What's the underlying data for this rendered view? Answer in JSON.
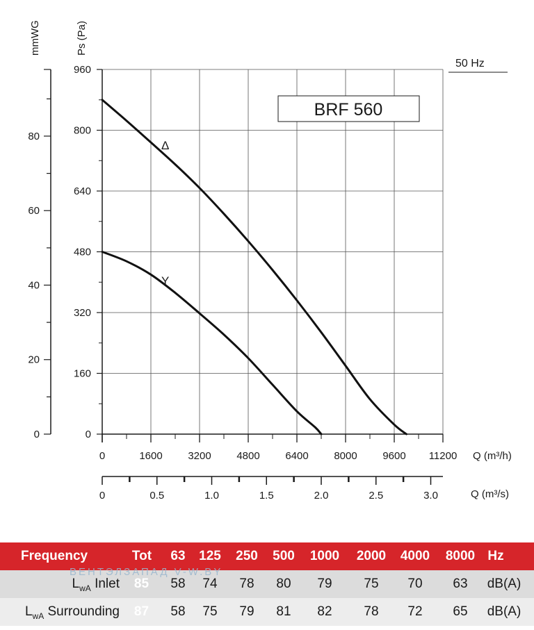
{
  "chart_data": {
    "type": "line",
    "model_label": "BRF 560",
    "frequency_label": "50 Hz",
    "y_label": "Ps (Pa)",
    "y2_label": "mmWG",
    "x_label": "Q (m³/h)",
    "x2_label": "Q (m³/s)",
    "xlim": [
      0,
      11200
    ],
    "ylim": [
      0,
      960
    ],
    "x_ticks": [
      "0",
      "1600",
      "3200",
      "4800",
      "6400",
      "8000",
      "9600",
      "11200"
    ],
    "y_ticks": [
      "0",
      "160",
      "320",
      "480",
      "640",
      "800",
      "960"
    ],
    "y2_ticks": [
      "0",
      "20",
      "40",
      "60",
      "80"
    ],
    "y2_tick_values": [
      0,
      20,
      40,
      60,
      80
    ],
    "x2_ticks": [
      "0",
      "0.5",
      "1.0",
      "1.5",
      "2.0",
      "2.5",
      "3.0"
    ],
    "x2_tick_values": [
      0,
      0.5,
      1.0,
      1.5,
      2.0,
      2.5,
      3.0
    ],
    "grid": true,
    "series": [
      {
        "name": "Δ",
        "x": [
          0,
          800,
          1600,
          2400,
          3200,
          4000,
          4800,
          5600,
          6400,
          7200,
          8000,
          8800,
          9600,
          10000
        ],
        "y": [
          880,
          825,
          768,
          710,
          648,
          580,
          508,
          432,
          352,
          268,
          180,
          92,
          25,
          0
        ]
      },
      {
        "name": "Y",
        "x": [
          0,
          800,
          1600,
          2400,
          3200,
          4000,
          4800,
          5600,
          6400,
          7000,
          7200
        ],
        "y": [
          480,
          455,
          420,
          372,
          318,
          262,
          200,
          130,
          60,
          18,
          0
        ]
      }
    ]
  },
  "noise_table": {
    "header": {
      "frequency": "Frequency",
      "tot": "Tot",
      "bands": [
        "63",
        "125",
        "250",
        "500",
        "1000",
        "2000",
        "4000",
        "8000"
      ],
      "unit": "Hz"
    },
    "rows": [
      {
        "label_main": "L",
        "label_sub": "wA",
        "label_rest": " Inlet",
        "tot": "85",
        "values": [
          "58",
          "74",
          "78",
          "80",
          "79",
          "75",
          "70",
          "63"
        ],
        "unit": "dB(A)"
      },
      {
        "label_main": "L",
        "label_sub": "wA",
        "label_rest": " Surrounding",
        "tot": "87",
        "values": [
          "58",
          "75",
          "79",
          "81",
          "82",
          "78",
          "72",
          "65"
        ],
        "unit": "dB(A)"
      }
    ]
  },
  "watermark": "ВЕНТЭЛЗАПАД  V-W.BY"
}
